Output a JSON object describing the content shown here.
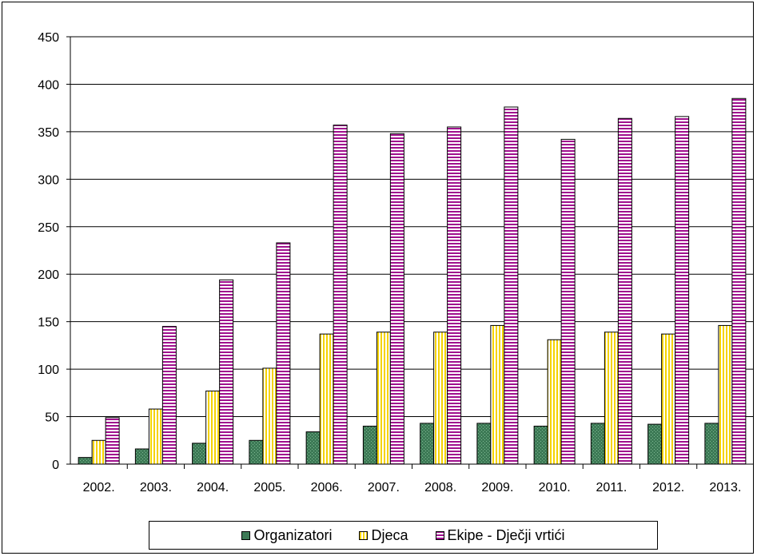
{
  "chart_data": {
    "type": "bar",
    "title": "",
    "xlabel": "",
    "ylabel": "",
    "ylim": [
      0,
      450
    ],
    "yticks": [
      "0",
      "50",
      "100",
      "150",
      "200",
      "250",
      "300",
      "350",
      "400",
      "450"
    ],
    "grid": true,
    "legend_position": "bottom",
    "categories": [
      "2002.",
      "2003.",
      "2004.",
      "2005.",
      "2006.",
      "2007.",
      "2008.",
      "2009.",
      "2010.",
      "2011.",
      "2012.",
      "2013."
    ],
    "series": [
      {
        "name": "Organizatori",
        "color": "#3d7a56",
        "pattern": "dotted",
        "values": [
          7,
          16,
          22,
          25,
          34,
          40,
          43,
          43,
          40,
          43,
          42,
          43
        ]
      },
      {
        "name": "Djeca",
        "color": "#f5d300",
        "pattern": "vertical-stripes",
        "values": [
          25,
          58,
          77,
          101,
          137,
          139,
          139,
          146,
          131,
          139,
          137,
          146
        ]
      },
      {
        "name": "Ekipe - Dječji vrtići",
        "color": "#a0108e",
        "pattern": "horizontal-stripes",
        "values": [
          49,
          145,
          194,
          233,
          357,
          348,
          355,
          376,
          342,
          364,
          366,
          385
        ]
      }
    ]
  }
}
